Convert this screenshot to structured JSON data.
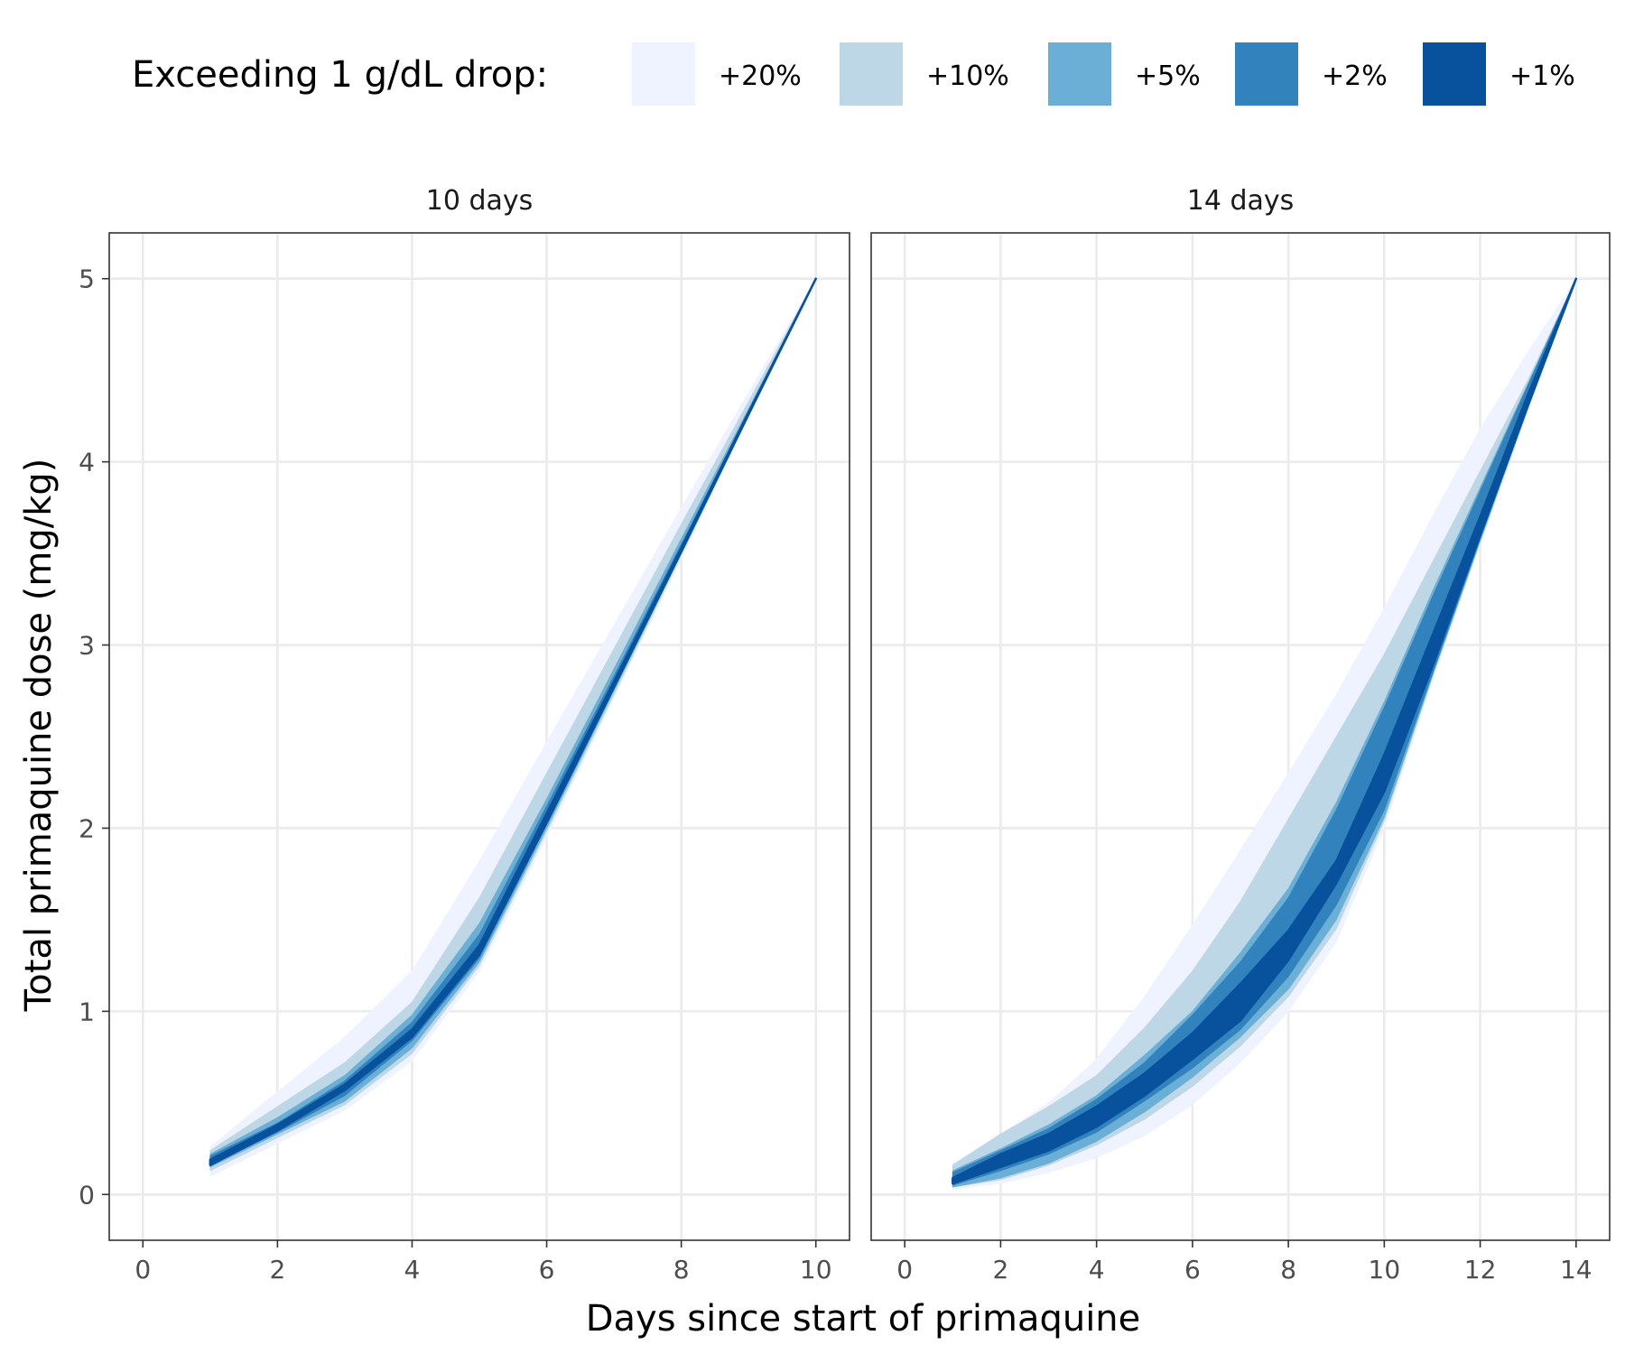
{
  "chart_data": {
    "type": "area",
    "xlabel": "Days since start of primaquine",
    "ylabel": "Total primaquine dose (mg/kg)",
    "legend": {
      "title": "Exceeding 1 g/dL drop:",
      "position": "top",
      "entries": [
        {
          "label": "+20%",
          "color": "#eff3ff"
        },
        {
          "label": "+10%",
          "color": "#bdd7e7"
        },
        {
          "label": "+5%",
          "color": "#6baed6"
        },
        {
          "label": "+2%",
          "color": "#3182bd"
        },
        {
          "label": "+1%",
          "color": "#08519c"
        }
      ]
    },
    "ylim": [
      -0.25,
      5.25
    ],
    "yticks": [
      0,
      1,
      2,
      3,
      4,
      5
    ],
    "grid": true,
    "panels": [
      {
        "title": "10 days",
        "xlim": [
          -0.5,
          10.5
        ],
        "xticks": [
          0,
          2,
          4,
          6,
          8,
          10
        ],
        "x": [
          1,
          2,
          3,
          4,
          5,
          6,
          7,
          8,
          9,
          10
        ],
        "bands": [
          {
            "label": "+20%",
            "lower": [
              0.1,
              0.28,
              0.46,
              0.73,
              1.22,
              1.95,
              2.71,
              3.47,
              4.24,
              5.0
            ],
            "upper": [
              0.26,
              0.56,
              0.86,
              1.22,
              1.82,
              2.47,
              3.11,
              3.75,
              4.38,
              5.0
            ]
          },
          {
            "label": "+10%",
            "lower": [
              0.13,
              0.31,
              0.49,
              0.77,
              1.25,
              1.98,
              2.73,
              3.49,
              4.25,
              5.0
            ],
            "upper": [
              0.24,
              0.48,
              0.72,
              1.05,
              1.62,
              2.3,
              2.98,
              3.66,
              4.33,
              5.0
            ]
          },
          {
            "label": "+5%",
            "lower": [
              0.15,
              0.33,
              0.51,
              0.8,
              1.27,
              2.0,
              2.75,
              3.5,
              4.25,
              5.0
            ],
            "upper": [
              0.22,
              0.42,
              0.65,
              0.98,
              1.48,
              2.16,
              2.87,
              3.58,
              4.29,
              5.0
            ]
          },
          {
            "label": "+2%",
            "lower": [
              0.16,
              0.34,
              0.54,
              0.84,
              1.29,
              2.02,
              2.76,
              3.51,
              4.25,
              5.0
            ],
            "upper": [
              0.21,
              0.39,
              0.62,
              0.94,
              1.42,
              2.12,
              2.83,
              3.55,
              4.27,
              5.0
            ]
          },
          {
            "label": "+1%",
            "lower": [
              0.16,
              0.35,
              0.57,
              0.86,
              1.31,
              2.03,
              2.77,
              3.51,
              4.26,
              5.0
            ],
            "upper": [
              0.19,
              0.38,
              0.6,
              0.9,
              1.36,
              2.08,
              2.8,
              3.53,
              4.27,
              5.0
            ]
          }
        ]
      },
      {
        "title": "14 days",
        "xlim": [
          -0.7,
          14.7
        ],
        "xticks": [
          0,
          2,
          4,
          6,
          8,
          10,
          12,
          14
        ],
        "x": [
          1,
          2,
          3,
          4,
          5,
          6,
          7,
          8,
          9,
          10,
          11,
          12,
          13,
          14
        ],
        "bands": [
          {
            "label": "+20%",
            "lower": [
              0.03,
              0.06,
              0.12,
              0.2,
              0.32,
              0.49,
              0.72,
              1.0,
              1.38,
              2.0,
              2.8,
              3.55,
              4.28,
              5.0
            ],
            "upper": [
              0.17,
              0.33,
              0.5,
              0.74,
              1.08,
              1.47,
              1.88,
              2.3,
              2.73,
              3.2,
              3.7,
              4.18,
              4.6,
              5.0
            ]
          },
          {
            "label": "+10%",
            "lower": [
              0.04,
              0.08,
              0.16,
              0.27,
              0.41,
              0.59,
              0.81,
              1.08,
              1.45,
              2.04,
              2.82,
              3.56,
              4.29,
              5.0
            ],
            "upper": [
              0.16,
              0.33,
              0.48,
              0.65,
              0.91,
              1.22,
              1.6,
              2.05,
              2.5,
              2.95,
              3.45,
              3.95,
              4.45,
              5.0
            ]
          },
          {
            "label": "+5%",
            "lower": [
              0.04,
              0.09,
              0.17,
              0.29,
              0.45,
              0.64,
              0.86,
              1.12,
              1.5,
              2.06,
              2.83,
              3.57,
              4.3,
              5.0
            ],
            "upper": [
              0.13,
              0.25,
              0.38,
              0.54,
              0.76,
              1.0,
              1.32,
              1.67,
              2.14,
              2.69,
              3.29,
              3.86,
              4.43,
              5.0
            ]
          },
          {
            "label": "+2%",
            "lower": [
              0.05,
              0.13,
              0.22,
              0.34,
              0.51,
              0.69,
              0.9,
              1.19,
              1.58,
              2.1,
              2.84,
              3.58,
              4.3,
              5.0
            ],
            "upper": [
              0.12,
              0.24,
              0.36,
              0.52,
              0.72,
              0.98,
              1.27,
              1.62,
              2.1,
              2.66,
              3.26,
              3.84,
              4.42,
              5.0
            ]
          },
          {
            "label": "+1%",
            "lower": [
              0.06,
              0.15,
              0.24,
              0.37,
              0.54,
              0.74,
              0.95,
              1.28,
              1.7,
              2.2,
              2.88,
              3.6,
              4.31,
              5.0
            ],
            "upper": [
              0.09,
              0.22,
              0.33,
              0.48,
              0.66,
              0.88,
              1.15,
              1.44,
              1.82,
              2.4,
              3.05,
              3.7,
              4.37,
              5.0
            ]
          }
        ]
      }
    ]
  }
}
